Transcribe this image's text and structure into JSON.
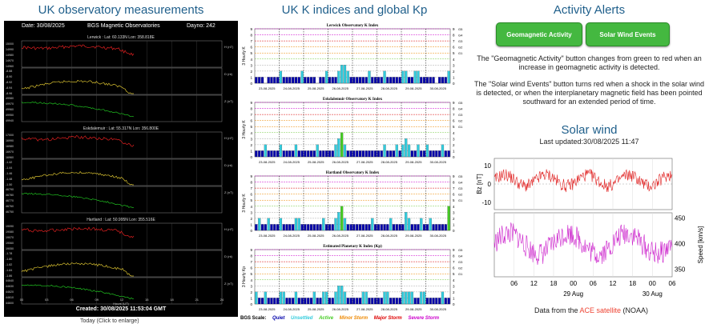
{
  "columns": {
    "mag_title": "UK observatory measurements",
    "k_title": "UK K indices and global Kp",
    "alerts_title": "Activity Alerts"
  },
  "magnetogram": {
    "date": "Date: 30/08/2025",
    "header": "BGS Magnetic Observatories",
    "dayno": "Dayno: 242",
    "stations": [
      {
        "label": "Lerwick :  Lat: 60.133N  Lon: 358.818E",
        "h": "H (nT)",
        "d": "D (nt)",
        "z": "Z (nT)",
        "h_ticks": [
          "15000",
          "14990",
          "14980",
          "14970",
          "14960"
        ],
        "d_ticks": [
          "-8.88",
          "-8.90",
          "-8.92",
          "-8.94",
          "-8.96"
        ],
        "z_ticks": [
          "49980",
          "49970",
          "49960",
          "49950",
          "49940"
        ]
      },
      {
        "label": "Eskdalemuir :  Lat: 55.317N  Lon: 356.800E",
        "h": "H (nT)",
        "d": "D (nt)",
        "z": "Z (nT)",
        "h_ticks": [
          "17000",
          "16990",
          "16980",
          "16970",
          "16960"
        ],
        "d_ticks": [
          "-1.42",
          "-1.44",
          "-1.46",
          "-1.48",
          "-1.50"
        ],
        "z_ticks": [
          "46790",
          "46780",
          "46770",
          "46760",
          "46750"
        ]
      },
      {
        "label": "Hartland :  Lat: 50.995N  Lon: 355.516E",
        "h": "H (nT)",
        "d": "D (nt)",
        "z": "Z (nT)",
        "h_ticks": [
          "19090",
          "19080",
          "19070",
          "19060",
          "19050"
        ],
        "d_ticks": [
          "-1.78",
          "-1.80",
          "-1.82",
          "-1.84",
          "-1.86"
        ],
        "z_ticks": [
          "44640",
          "44630",
          "44620",
          "44610",
          "44600"
        ]
      }
    ],
    "x_ticks": [
      "00",
      "03",
      "06",
      "09",
      "12",
      "15",
      "18",
      "21",
      "24"
    ],
    "xlabel": "Hours (UT)",
    "created": "Created: 30/08/2025 11:53:04 GMT",
    "caption": "Today (Click to enlarge)",
    "colors": {
      "h": "#e02020",
      "d": "#d8c030",
      "z": "#20c020"
    }
  },
  "kpanels": [
    {
      "title": "Lerwick Observatory K Index",
      "ylabel": "3 Hourly K"
    },
    {
      "title": "Eskdalemuir Observatory K Index",
      "ylabel": "3 Hourly K"
    },
    {
      "title": "Hartland Observatory K Index",
      "ylabel": "3 Hourly K"
    },
    {
      "title": "Estimated Planetary K Index (Kp)",
      "ylabel": "3 Hourly Kp"
    }
  ],
  "k_axis": {
    "y_ticks": [
      "0",
      "1",
      "2",
      "3",
      "4",
      "5",
      "6",
      "7",
      "8",
      "9"
    ],
    "g_labels": [
      "G1",
      "G2",
      "G3",
      "G4",
      "G5"
    ],
    "dates": [
      "23-08-2025",
      "24-08-2025",
      "25-08-2025",
      "26-08-2025",
      "27-08-2025",
      "28-08-2025",
      "29-08-2025",
      "30-08-2025"
    ]
  },
  "chart_data": [
    {
      "type": "bar",
      "title": "Lerwick Observatory K Index",
      "ylabel": "3 Hourly K",
      "ylim": [
        0,
        9
      ],
      "x": "23-08-2025 to 30-08-2025, 3-hourly",
      "values": [
        1,
        1,
        1,
        0,
        1,
        1,
        1,
        1,
        2,
        1,
        1,
        1,
        1,
        1,
        1,
        2,
        1,
        1,
        1,
        1,
        0,
        1,
        1,
        2,
        1,
        1,
        1,
        2,
        3,
        3,
        2,
        1,
        1,
        1,
        1,
        1,
        1,
        2,
        1,
        1,
        1,
        1,
        2,
        1,
        1,
        1,
        1,
        1,
        2,
        2,
        1,
        1,
        2,
        2,
        1,
        1,
        1,
        1,
        1,
        0,
        1,
        1,
        1,
        2
      ]
    },
    {
      "type": "bar",
      "title": "Eskdalemuir Observatory K Index",
      "ylabel": "3 Hourly K",
      "ylim": [
        0,
        9
      ],
      "values": [
        1,
        1,
        1,
        2,
        1,
        1,
        1,
        1,
        2,
        1,
        1,
        1,
        1,
        2,
        1,
        1,
        1,
        1,
        1,
        1,
        2,
        1,
        1,
        1,
        1,
        1,
        2,
        3,
        4,
        2,
        1,
        1,
        1,
        1,
        1,
        1,
        1,
        1,
        1,
        1,
        1,
        1,
        2,
        1,
        1,
        1,
        2,
        1,
        2,
        3,
        2,
        1,
        1,
        2,
        1,
        1,
        2,
        1,
        1,
        1,
        1,
        2,
        1,
        1
      ]
    },
    {
      "type": "bar",
      "title": "Hartland Observatory K Index",
      "ylabel": "3 Hourly K",
      "ylim": [
        0,
        9
      ],
      "values": [
        1,
        2,
        1,
        1,
        2,
        1,
        1,
        1,
        2,
        1,
        1,
        1,
        1,
        2,
        2,
        1,
        1,
        1,
        1,
        1,
        1,
        1,
        2,
        1,
        1,
        1,
        2,
        3,
        4,
        2,
        1,
        1,
        1,
        1,
        1,
        1,
        1,
        1,
        2,
        1,
        1,
        1,
        1,
        1,
        2,
        1,
        1,
        1,
        1,
        3,
        2,
        1,
        1,
        1,
        2,
        1,
        1,
        2,
        1,
        1,
        1,
        1,
        1,
        4
      ]
    },
    {
      "type": "bar",
      "title": "Estimated Planetary K Index (Kp)",
      "ylabel": "3 Hourly Kp",
      "ylim": [
        0,
        9
      ],
      "values": [
        2,
        1,
        1,
        2,
        1,
        1,
        1,
        1,
        2,
        2,
        1,
        1,
        1,
        2,
        1,
        1,
        1,
        1,
        1,
        2,
        1,
        1,
        2,
        2,
        1,
        1,
        2,
        3,
        3,
        2,
        1,
        1,
        1,
        1,
        1,
        2,
        2,
        1,
        1,
        1,
        1,
        1,
        2,
        2,
        1,
        1,
        1,
        1,
        2,
        2,
        2,
        2,
        1,
        1,
        2,
        2,
        1,
        1,
        1,
        1,
        1,
        2,
        1,
        1
      ]
    }
  ],
  "scale": {
    "label": "BGS Scale:",
    "items": [
      {
        "name": "Quiet",
        "color": "#0000aa"
      },
      {
        "name": "Unsettled",
        "color": "#33ccdd"
      },
      {
        "name": "Active",
        "color": "#44cc22"
      },
      {
        "name": "Minor Storm",
        "color": "#ee8800"
      },
      {
        "name": "Major Storm",
        "color": "#dd0000"
      },
      {
        "name": "Severe Storm",
        "color": "#cc00cc"
      }
    ]
  },
  "k_colors": {
    "1": "#0000aa",
    "2": "#33ccdd",
    "3": "#33ccdd",
    "4": "#44cc22"
  },
  "alerts": {
    "geo_button": "Geomagnetic Activity",
    "sw_button": "Solar Wind Events",
    "p1": "The \"Geomagnetic Activity\" button changes from green to red when an increase in geomagnetic activity is detected.",
    "p2": "The \"Solar wind Events\" button turns red when a shock in the solar wind is detected, or when the interplanetary magnetic field has been pointed southward for an extended period of time.",
    "button_color": "#44b840"
  },
  "solar_wind": {
    "title": "Solar wind",
    "updated": "Last updated:30/08/2025 11:47",
    "bz_label": "Bz [nT]",
    "bz_ticks": [
      "10",
      "0",
      "-10"
    ],
    "speed_label": "Speed [km/s]",
    "speed_ticks": [
      "450",
      "400",
      "350"
    ],
    "x_ticks": [
      "06",
      "12",
      "18",
      "00",
      "06",
      "12",
      "18",
      "00",
      "06"
    ],
    "date_labels": [
      "29 Aug",
      "30 Aug"
    ],
    "footer_pre": "Data from the",
    "footer_link": "ACE satellite",
    "footer_post": "(NOAA)",
    "bz_color": "#e02020",
    "speed_color": "#cc22cc"
  }
}
